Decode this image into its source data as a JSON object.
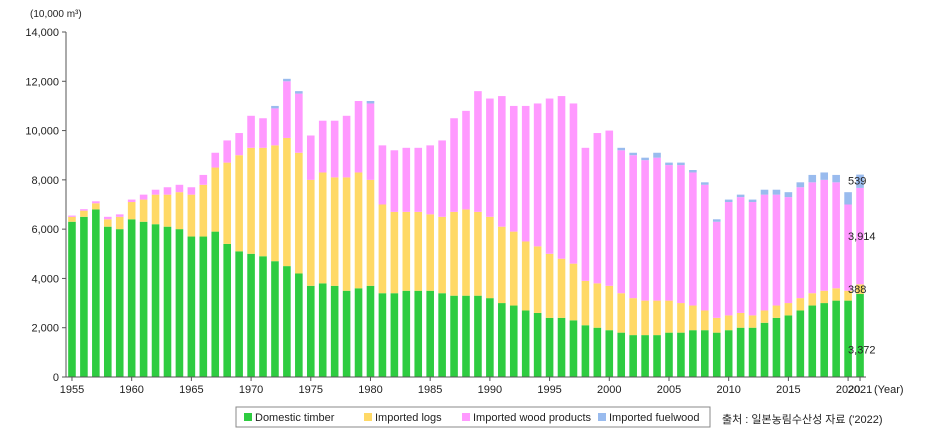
{
  "chart_data": {
    "type": "bar",
    "stacked": true,
    "unit_label": "(10,000 m³)",
    "x_axis_suffix": "(Year)",
    "ylim": [
      0,
      14000
    ],
    "yticks": [
      "0",
      "2,000",
      "4,000",
      "6,000",
      "8,000",
      "10,000",
      "12,000",
      "14,000"
    ],
    "ytick_values": [
      0,
      2000,
      4000,
      6000,
      8000,
      10000,
      12000,
      14000
    ],
    "grid": false,
    "legend_position": "bottom",
    "x": [
      1955,
      1956,
      1957,
      1958,
      1959,
      1960,
      1961,
      1962,
      1963,
      1964,
      1965,
      1966,
      1967,
      1968,
      1969,
      1970,
      1971,
      1972,
      1973,
      1974,
      1975,
      1976,
      1977,
      1978,
      1979,
      1980,
      1981,
      1982,
      1983,
      1984,
      1985,
      1986,
      1987,
      1988,
      1989,
      1990,
      1991,
      1992,
      1993,
      1994,
      1995,
      1996,
      1997,
      1998,
      1999,
      2000,
      2001,
      2002,
      2003,
      2004,
      2005,
      2006,
      2007,
      2008,
      2009,
      2010,
      2011,
      2012,
      2013,
      2014,
      2015,
      2016,
      2017,
      2018,
      2019,
      2020,
      2021
    ],
    "xtick_labels": [
      "1955",
      "1960",
      "1965",
      "1970",
      "1975",
      "1980",
      "1985",
      "1990",
      "1995",
      "2000",
      "2005",
      "2010",
      "2015",
      "2020",
      "2021"
    ],
    "series": [
      {
        "name": "Domestic timber",
        "color": "#2ecc40",
        "values": [
          6300,
          6500,
          6800,
          6100,
          6000,
          6400,
          6300,
          6200,
          6100,
          6000,
          5700,
          5700,
          5900,
          5400,
          5100,
          5000,
          4900,
          4700,
          4500,
          4200,
          3700,
          3800,
          3700,
          3500,
          3600,
          3700,
          3400,
          3400,
          3500,
          3500,
          3500,
          3400,
          3300,
          3300,
          3300,
          3200,
          3000,
          2900,
          2700,
          2600,
          2400,
          2400,
          2300,
          2100,
          2000,
          1900,
          1800,
          1700,
          1700,
          1700,
          1800,
          1800,
          1900,
          1900,
          1800,
          1900,
          2000,
          2000,
          2200,
          2400,
          2500,
          2700,
          2900,
          3000,
          3100,
          3100,
          3372
        ]
      },
      {
        "name": "Imported logs",
        "color": "#ffd966",
        "values": [
          200,
          250,
          250,
          300,
          500,
          700,
          900,
          1200,
          1300,
          1500,
          1700,
          2100,
          2600,
          3300,
          3900,
          4300,
          4400,
          4700,
          5200,
          4900,
          4300,
          4500,
          4400,
          4600,
          4700,
          4300,
          3600,
          3300,
          3200,
          3200,
          3100,
          3100,
          3400,
          3500,
          3400,
          3300,
          3100,
          3000,
          2800,
          2700,
          2600,
          2400,
          2300,
          1800,
          1800,
          1800,
          1600,
          1500,
          1400,
          1400,
          1300,
          1200,
          1000,
          800,
          600,
          600,
          600,
          500,
          500,
          500,
          500,
          500,
          500,
          500,
          500,
          400,
          388
        ]
      },
      {
        "name": "Imported wood products",
        "color": "#ff99ff",
        "values": [
          50,
          60,
          80,
          100,
          100,
          100,
          200,
          200,
          300,
          300,
          300,
          400,
          600,
          900,
          900,
          1300,
          1200,
          1500,
          2300,
          2400,
          1800,
          2100,
          2300,
          2500,
          2900,
          3100,
          2400,
          2500,
          2600,
          2600,
          2800,
          3100,
          3800,
          4000,
          4900,
          4800,
          5300,
          5100,
          5500,
          5800,
          6300,
          6600,
          6500,
          5400,
          6100,
          6300,
          5800,
          5800,
          5700,
          5800,
          5500,
          5600,
          5400,
          5100,
          3900,
          4600,
          4700,
          4600,
          4700,
          4500,
          4300,
          4500,
          4500,
          4500,
          4300,
          3500,
          3914
        ]
      },
      {
        "name": "Imported fuelwood",
        "color": "#99bbee",
        "values": [
          0,
          0,
          0,
          0,
          0,
          0,
          0,
          0,
          0,
          0,
          0,
          0,
          0,
          0,
          0,
          0,
          0,
          100,
          100,
          100,
          0,
          0,
          0,
          0,
          0,
          100,
          0,
          0,
          0,
          0,
          0,
          0,
          0,
          0,
          0,
          0,
          0,
          0,
          0,
          0,
          0,
          0,
          0,
          0,
          0,
          0,
          100,
          100,
          100,
          200,
          100,
          100,
          100,
          100,
          100,
          100,
          100,
          100,
          200,
          200,
          200,
          200,
          300,
          300,
          300,
          500,
          539
        ]
      }
    ],
    "data_labels": [
      {
        "year": 2021,
        "series": "Imported fuelwood",
        "text": "539"
      },
      {
        "year": 2021,
        "series": "Imported wood products",
        "text": "3,914"
      },
      {
        "year": 2021,
        "series": "Imported logs",
        "text": "388"
      },
      {
        "year": 2021,
        "series": "Domestic timber",
        "text": "3,372"
      }
    ]
  },
  "source_note": "출처 : 일본농림수산성 자료 ('2022)"
}
